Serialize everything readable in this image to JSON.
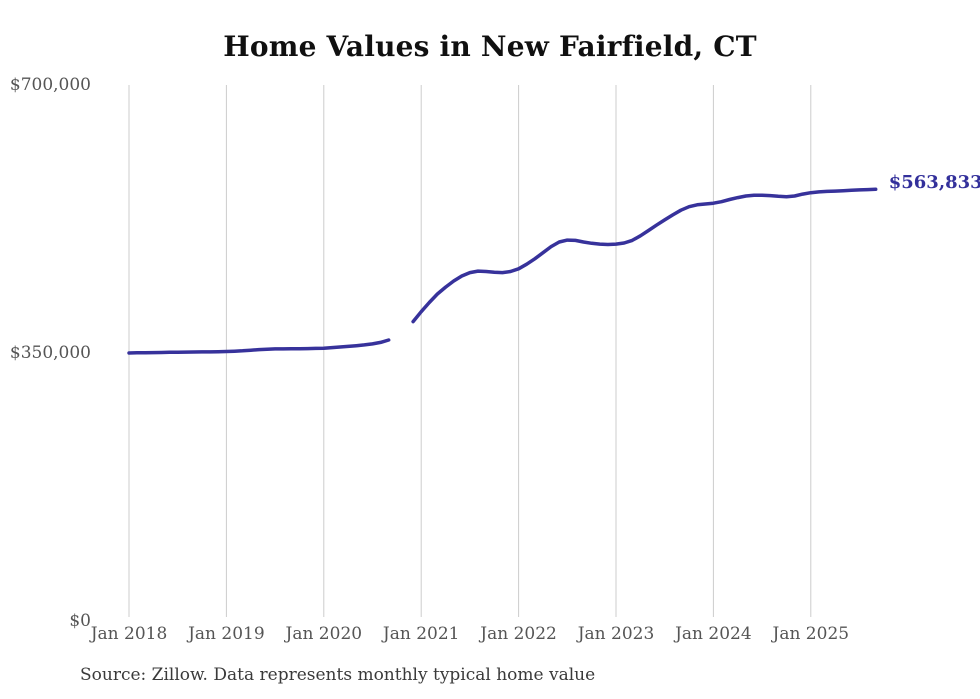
{
  "title": "Home Values in New Fairfield, CT",
  "source_note": "Source: Zillow. Data represents monthly typical home value",
  "chart_data": {
    "type": "line",
    "title": "Home Values in New Fairfield, CT",
    "x_unit": "month",
    "x_start": "Jan 2018",
    "x_end": "Sep 2025",
    "xticks": [
      "Jan 2018",
      "Jan 2019",
      "Jan 2020",
      "Jan 2021",
      "Jan 2022",
      "Jan 2023",
      "Jan 2024",
      "Jan 2025"
    ],
    "yticks": [
      {
        "label": "$0",
        "value": 0
      },
      {
        "label": "$350,000",
        "value": 350000
      },
      {
        "label": "$700,000",
        "value": 700000
      }
    ],
    "ylim": [
      0,
      700000
    ],
    "grid": "vertical-only",
    "legend": "none",
    "data_gap_months": [
      "Oct 2020",
      "Nov 2020"
    ],
    "end_label": "$563,833",
    "line_color": "#37329B",
    "end_label_color": "#33309B",
    "grid_color": "#cccccc",
    "tick_color": "#555555",
    "series": [
      {
        "name": "Monthly typical home value",
        "values": [
          350000,
          350200,
          350400,
          350500,
          350700,
          350900,
          351100,
          351200,
          351300,
          351400,
          351500,
          351700,
          351900,
          352300,
          352900,
          353700,
          354500,
          355000,
          355300,
          355400,
          355500,
          355600,
          355800,
          356000,
          356300,
          357000,
          357800,
          358600,
          359500,
          360600,
          361900,
          363900,
          367000,
          null,
          null,
          391000,
          404000,
          416000,
          427000,
          436000,
          444000,
          450500,
          455000,
          457000,
          456500,
          455500,
          455000,
          456500,
          460000,
          466000,
          473000,
          481000,
          489000,
          495000,
          497500,
          497000,
          495000,
          493200,
          492200,
          491700,
          492200,
          493700,
          497000,
          503000,
          510000,
          517000,
          523800,
          530300,
          536500,
          541000,
          543500,
          544600,
          545600,
          547600,
          550500,
          553000,
          555000,
          556000,
          556000,
          555500,
          554600,
          554100,
          555100,
          557500,
          559400,
          560400,
          561000,
          561500,
          562000,
          562500,
          563000,
          563400,
          563833
        ]
      }
    ]
  }
}
